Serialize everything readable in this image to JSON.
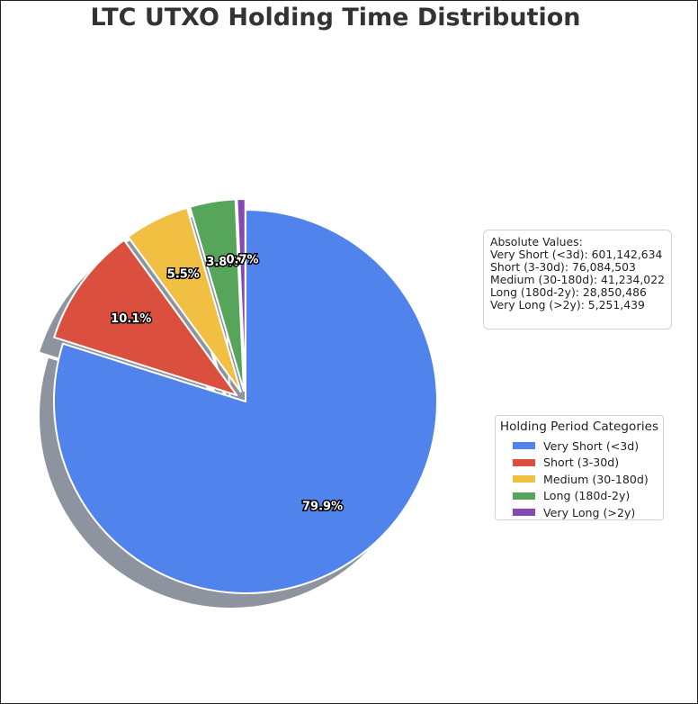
{
  "chart_data": {
    "type": "pie",
    "title": "LTC UTXO Holding Time Distribution",
    "categories": [
      "Very Short (<3d)",
      "Short (3-30d)",
      "Medium (30-180d)",
      "Long (180d-2y)",
      "Very Long (>2y)"
    ],
    "values": [
      601142634,
      76084503,
      41234022,
      28850486,
      5251439
    ],
    "percent_labels": [
      "79.9%",
      "10.1%",
      "5.5%",
      "3.8%",
      "0.7%"
    ],
    "colors": [
      "#5083ec",
      "#db4f3f",
      "#f1bf42",
      "#56a55b",
      "#8649b4"
    ],
    "start_angle": "90 degrees (top), counter-clockwise order reversed (clockwise)",
    "exploded": true,
    "shadow": true,
    "legend_title": "Holding Period Categories",
    "legend_placement": "right"
  },
  "absolute_values": {
    "heading": "Absolute Values:",
    "lines": [
      "Very Short (<3d): 601,142,634",
      "Short (3-30d): 76,084,503",
      "Medium (30-180d): 41,234,022",
      "Long (180d-2y): 28,850,486",
      "Very Long (>2y): 5,251,439"
    ]
  }
}
